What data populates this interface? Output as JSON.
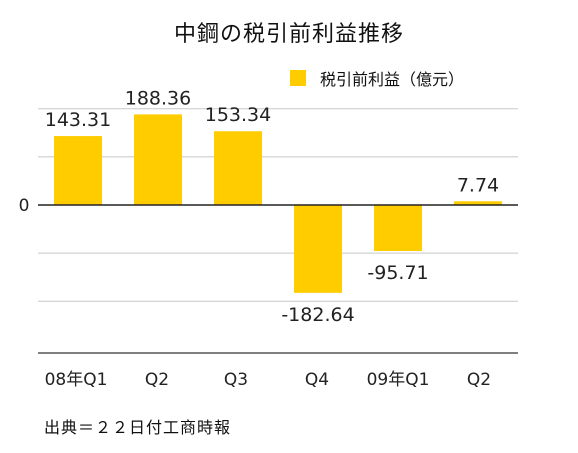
{
  "chart_data": {
    "type": "bar",
    "title": "中鋼の税引前利益推移",
    "categories": [
      "08年Q1",
      "Q2",
      "Q3",
      "Q4",
      "09年Q1",
      "Q2"
    ],
    "series": [
      {
        "name": "税引前利益（億元）",
        "values": [
          143.31,
          188.36,
          153.34,
          -182.64,
          -95.71,
          7.74
        ]
      }
    ],
    "value_labels": [
      "143.31",
      "188.36",
      "153.34",
      "-182.64",
      "-95.71",
      "7.74"
    ],
    "y_tick_labels": [
      "0"
    ],
    "ylim": [
      -290,
      190
    ],
    "grid": true,
    "legend_position": "top-right",
    "bar_color": "#FFCC00"
  },
  "source_note": "出典＝２２日付工商時報"
}
